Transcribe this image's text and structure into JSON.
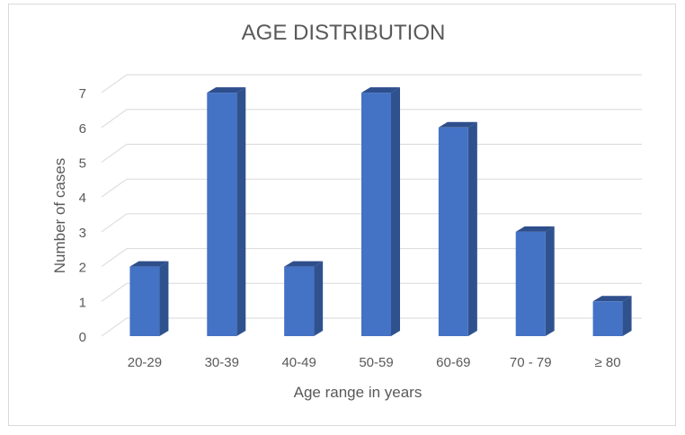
{
  "chart_data": {
    "type": "bar",
    "title": "AGE DISTRIBUTION",
    "xlabel": "Age range in years",
    "ylabel": "Number of cases",
    "categories": [
      "20-29",
      "30-39",
      "40-49",
      "50-59",
      "60-69",
      "70 - 79",
      "≥ 80"
    ],
    "values": [
      2,
      7,
      2,
      7,
      6,
      3,
      1
    ],
    "ylim": [
      0,
      7
    ],
    "yticks": [
      "0",
      "1",
      "2",
      "3",
      "4",
      "5",
      "6",
      "7"
    ],
    "grid": true,
    "style": "3d-column",
    "colors": {
      "bar_front": "#4472c4",
      "bar_side": "#2f528f",
      "bar_top": "#2e4e8c"
    }
  }
}
